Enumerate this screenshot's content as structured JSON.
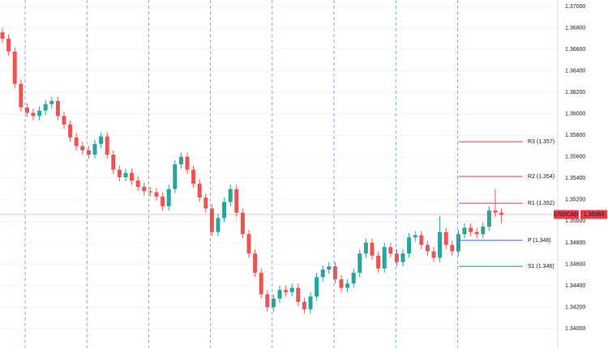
{
  "chart_data": {
    "type": "candlestick",
    "up_color": "#26a69a",
    "down_color": "#ef5350",
    "ylim": [
      1.3382,
      1.3706
    ],
    "yticks": [
      {
        "value": 1.34,
        "label": "1.34000"
      },
      {
        "value": 1.342,
        "label": "1.34200"
      },
      {
        "value": 1.344,
        "label": "1.34400"
      },
      {
        "value": 1.346,
        "label": "1.34600"
      },
      {
        "value": 1.348,
        "label": "1.34800"
      },
      {
        "value": 1.35,
        "label": "1.35000"
      },
      {
        "value": 1.352,
        "label": "1.35200"
      },
      {
        "value": 1.354,
        "label": "1.35400"
      },
      {
        "value": 1.356,
        "label": "1.35600"
      },
      {
        "value": 1.358,
        "label": "1.35800"
      },
      {
        "value": 1.36,
        "label": "1.36000"
      },
      {
        "value": 1.362,
        "label": "1.36200"
      },
      {
        "value": 1.364,
        "label": "1.36400"
      },
      {
        "value": 1.366,
        "label": "1.36600"
      },
      {
        "value": 1.368,
        "label": "1.36800"
      },
      {
        "value": 1.37,
        "label": "1.37000"
      }
    ],
    "grid": true,
    "ohlc": [
      [
        1.3676,
        1.368,
        1.3666,
        1.367
      ],
      [
        1.367,
        1.3674,
        1.3654,
        1.3658
      ],
      [
        1.3658,
        1.3662,
        1.3624,
        1.3628
      ],
      [
        1.3628,
        1.3632,
        1.3602,
        1.3606
      ],
      [
        1.3606,
        1.361,
        1.3597,
        1.3601
      ],
      [
        1.3601,
        1.3605,
        1.3594,
        1.3598
      ],
      [
        1.3598,
        1.3607,
        1.3594,
        1.3603
      ],
      [
        1.3603,
        1.3613,
        1.3599,
        1.3609
      ],
      [
        1.3609,
        1.3616,
        1.3605,
        1.3612
      ],
      [
        1.3612,
        1.3616,
        1.3594,
        1.3598
      ],
      [
        1.3598,
        1.3602,
        1.3586,
        1.359
      ],
      [
        1.359,
        1.3594,
        1.3574,
        1.3578
      ],
      [
        1.3578,
        1.3582,
        1.3566,
        1.357
      ],
      [
        1.357,
        1.3574,
        1.3562,
        1.3566
      ],
      [
        1.3566,
        1.357,
        1.3558,
        1.3562
      ],
      [
        1.3562,
        1.3576,
        1.3558,
        1.3572
      ],
      [
        1.3572,
        1.3583,
        1.3568,
        1.3579
      ],
      [
        1.3579,
        1.3583,
        1.3558,
        1.3562
      ],
      [
        1.3562,
        1.3566,
        1.3544,
        1.3548
      ],
      [
        1.3548,
        1.3552,
        1.3537,
        1.3541
      ],
      [
        1.3541,
        1.3549,
        1.3537,
        1.3545
      ],
      [
        1.3545,
        1.3549,
        1.3534,
        1.3538
      ],
      [
        1.3538,
        1.3542,
        1.3528,
        1.3532
      ],
      [
        1.3532,
        1.3536,
        1.3524,
        1.3528
      ],
      [
        1.3528,
        1.3532,
        1.3523,
        1.3527
      ],
      [
        1.3527,
        1.3531,
        1.3519,
        1.3523
      ],
      [
        1.3523,
        1.3527,
        1.351,
        1.3514
      ],
      [
        1.3514,
        1.3534,
        1.351,
        1.353
      ],
      [
        1.353,
        1.3557,
        1.3526,
        1.3553
      ],
      [
        1.3553,
        1.3564,
        1.3549,
        1.356
      ],
      [
        1.356,
        1.3564,
        1.3544,
        1.3548
      ],
      [
        1.3548,
        1.3552,
        1.3531,
        1.3535
      ],
      [
        1.3535,
        1.3539,
        1.3518,
        1.3522
      ],
      [
        1.3522,
        1.3526,
        1.3508,
        1.3512
      ],
      [
        1.3512,
        1.3516,
        1.3486,
        1.349
      ],
      [
        1.349,
        1.3507,
        1.3486,
        1.3503
      ],
      [
        1.3503,
        1.3522,
        1.3499,
        1.3518
      ],
      [
        1.3518,
        1.3534,
        1.3514,
        1.353
      ],
      [
        1.353,
        1.3534,
        1.3504,
        1.3508
      ],
      [
        1.3508,
        1.3512,
        1.3484,
        1.3488
      ],
      [
        1.3488,
        1.3492,
        1.3466,
        1.347
      ],
      [
        1.347,
        1.3474,
        1.3448,
        1.3452
      ],
      [
        1.3452,
        1.3456,
        1.3428,
        1.3432
      ],
      [
        1.3432,
        1.3436,
        1.3416,
        1.342
      ],
      [
        1.342,
        1.3432,
        1.3416,
        1.3428
      ],
      [
        1.3428,
        1.344,
        1.3424,
        1.3436
      ],
      [
        1.3436,
        1.344,
        1.343,
        1.3434
      ],
      [
        1.3434,
        1.3442,
        1.343,
        1.3438
      ],
      [
        1.3438,
        1.3442,
        1.3421,
        1.3425
      ],
      [
        1.3425,
        1.3429,
        1.3414,
        1.3418
      ],
      [
        1.3418,
        1.3434,
        1.3414,
        1.343
      ],
      [
        1.343,
        1.3452,
        1.3426,
        1.3448
      ],
      [
        1.3448,
        1.3459,
        1.3444,
        1.3455
      ],
      [
        1.3455,
        1.3462,
        1.3451,
        1.3458
      ],
      [
        1.3458,
        1.3462,
        1.3442,
        1.3446
      ],
      [
        1.3446,
        1.345,
        1.3434,
        1.3438
      ],
      [
        1.3438,
        1.3446,
        1.3434,
        1.3442
      ],
      [
        1.3442,
        1.3456,
        1.3438,
        1.3452
      ],
      [
        1.3452,
        1.3474,
        1.3448,
        1.347
      ],
      [
        1.347,
        1.3484,
        1.3466,
        1.348
      ],
      [
        1.348,
        1.3484,
        1.3464,
        1.3468
      ],
      [
        1.3468,
        1.3472,
        1.3452,
        1.3456
      ],
      [
        1.3456,
        1.348,
        1.3452,
        1.3476
      ],
      [
        1.3476,
        1.348,
        1.3466,
        1.347
      ],
      [
        1.347,
        1.3474,
        1.3458,
        1.3462
      ],
      [
        1.3462,
        1.3474,
        1.3458,
        1.347
      ],
      [
        1.347,
        1.3489,
        1.3466,
        1.3485
      ],
      [
        1.3485,
        1.3491,
        1.3481,
        1.3487
      ],
      [
        1.3487,
        1.3491,
        1.3474,
        1.3478
      ],
      [
        1.3478,
        1.3482,
        1.3468,
        1.3472
      ],
      [
        1.3472,
        1.3476,
        1.3462,
        1.3466
      ],
      [
        1.3466,
        1.3505,
        1.3462,
        1.349
      ],
      [
        1.349,
        1.3494,
        1.3474,
        1.3478
      ],
      [
        1.3478,
        1.3482,
        1.3468,
        1.3472
      ],
      [
        1.3472,
        1.3492,
        1.3468,
        1.3488
      ],
      [
        1.3488,
        1.3498,
        1.3484,
        1.3494
      ],
      [
        1.3494,
        1.3498,
        1.3486,
        1.349
      ],
      [
        1.349,
        1.3494,
        1.3484,
        1.3488
      ],
      [
        1.3488,
        1.3499,
        1.3484,
        1.3495
      ],
      [
        1.3495,
        1.3514,
        1.3491,
        1.351
      ],
      [
        1.351,
        1.353,
        1.3504,
        1.3508
      ],
      [
        1.3508,
        1.3512,
        1.3498,
        1.3506
      ]
    ],
    "pivots": [
      {
        "label": "R3 (1.357)",
        "value": 1.3574,
        "color": "#f23645"
      },
      {
        "label": "R2 (1.354)",
        "value": 1.35417,
        "color": "#f23645"
      },
      {
        "label": "R1 (1.352)",
        "value": 1.35168,
        "color": "#f23645"
      },
      {
        "label": "P (1.348)",
        "value": 1.34822,
        "color": "#2962ff"
      },
      {
        "label": "S1 (1.346)",
        "value": 1.3458,
        "color": "#089981"
      }
    ],
    "last": {
      "symbol": "USDCAD",
      "value": 1.35063,
      "color": "#f23645"
    }
  }
}
